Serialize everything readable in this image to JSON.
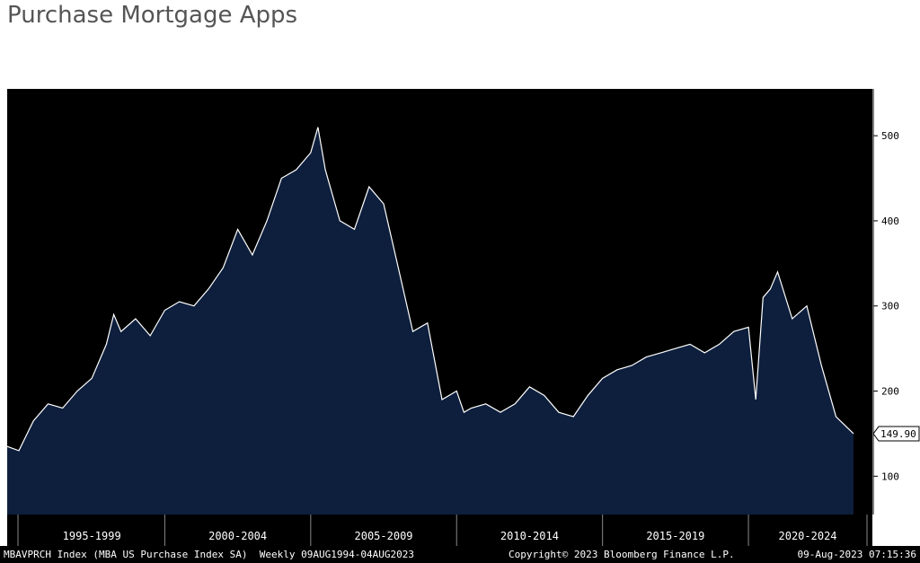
{
  "page": {
    "title": "Purchase Mortgage Apps"
  },
  "footer": {
    "index_info": "MBAVPRCH Index (MBA US Purchase Index SA)  Weekly 09AUG1994-04AUG2023",
    "copyright": "Copyright© 2023 Bloomberg Finance L.P.",
    "timestamp": "09-Aug-2023 07:15:36"
  },
  "colors": {
    "plot_background": "#000000",
    "area_fill": "#0e1f3d",
    "line": "#ffffff",
    "axis_text": "#ffffff"
  },
  "chart_data": {
    "type": "area",
    "series": [
      {
        "name": "MBAVPRCH Index",
        "x": [
          1994.6,
          1995.0,
          1995.5,
          1996.0,
          1996.5,
          1997.0,
          1997.5,
          1998.0,
          1998.25,
          1998.5,
          1999.0,
          1999.5,
          2000.0,
          2000.5,
          2001.0,
          2001.5,
          2002.0,
          2002.5,
          2003.0,
          2003.5,
          2004.0,
          2004.5,
          2005.0,
          2005.25,
          2005.5,
          2005.75,
          2006.0,
          2006.5,
          2007.0,
          2007.5,
          2008.0,
          2008.5,
          2009.0,
          2009.5,
          2010.0,
          2010.25,
          2010.5,
          2011.0,
          2011.5,
          2012.0,
          2012.5,
          2013.0,
          2013.5,
          2014.0,
          2014.5,
          2015.0,
          2015.5,
          2016.0,
          2016.5,
          2017.0,
          2017.5,
          2018.0,
          2018.5,
          2019.0,
          2019.5,
          2020.0,
          2020.25,
          2020.5,
          2020.75,
          2021.0,
          2021.5,
          2022.0,
          2022.5,
          2023.0,
          2023.6
        ],
        "values": [
          135,
          130,
          165,
          185,
          180,
          200,
          215,
          255,
          290,
          270,
          285,
          265,
          295,
          305,
          300,
          320,
          345,
          390,
          360,
          400,
          450,
          460,
          480,
          510,
          460,
          430,
          400,
          390,
          440,
          420,
          345,
          270,
          280,
          190,
          200,
          175,
          180,
          185,
          175,
          185,
          205,
          195,
          175,
          170,
          195,
          215,
          225,
          230,
          240,
          245,
          250,
          255,
          245,
          255,
          270,
          275,
          190,
          310,
          320,
          340,
          285,
          300,
          230,
          170,
          150
        ]
      }
    ],
    "x_categories": [
      "1995-1999",
      "2000-2004",
      "2005-2009",
      "2010-2014",
      "2015-2019",
      "2020-2024"
    ],
    "x_category_ranges": [
      [
        1995,
        2000
      ],
      [
        2000,
        2005
      ],
      [
        2005,
        2010
      ],
      [
        2010,
        2015
      ],
      [
        2015,
        2020
      ],
      [
        2020,
        2025
      ]
    ],
    "xlim": [
      1994.6,
      2024.5
    ],
    "y_ticks": [
      100,
      200,
      300,
      400,
      500
    ],
    "ylim": [
      55,
      555
    ],
    "last_value_label": "149.90",
    "last_value": 149.9
  }
}
